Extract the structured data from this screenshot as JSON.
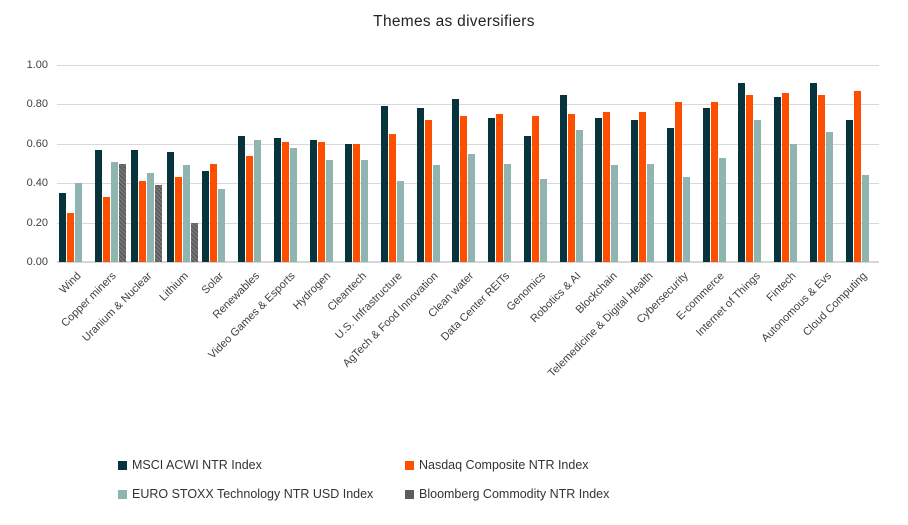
{
  "title": "Themes as diversifiers",
  "colors": {
    "msci_dark_teal": "#07333d",
    "nasdaq_orange": "#fe4f00",
    "stoxx_light_teal": "#90b4b1",
    "bcom_gray": "#5d5d5d",
    "gridline": "#d9d9d9",
    "axis_text": "#404040"
  },
  "chart_data": {
    "type": "bar",
    "title": "Themes as diversifiers",
    "categories": [
      "Wind",
      "Copper miners",
      "Uranium & Nuclear",
      "Lithium",
      "Solar",
      "Renewables",
      "Video Games & Esports",
      "Hydrogen",
      "Cleantech",
      "U.S. Infrastructure",
      "AgTech & Food Innovation",
      "Clean water",
      "Data Center REITs",
      "Genomics",
      "Robotics & AI",
      "Blockchain",
      "Telemedicine & Digital Health",
      "Cybersecurity",
      "E-commerce",
      "Internet of Things",
      "Fintech",
      "Autonomous & Evs",
      "Cloud Computing"
    ],
    "series": [
      {
        "name": "MSCI ACWI NTR Index",
        "color": "#07333d",
        "values": [
          0.35,
          0.57,
          0.57,
          0.56,
          0.46,
          0.64,
          0.63,
          0.62,
          0.6,
          0.79,
          0.78,
          0.83,
          0.73,
          0.64,
          0.85,
          0.73,
          0.72,
          0.68,
          0.78,
          0.91,
          0.84,
          0.91,
          0.72
        ]
      },
      {
        "name": "Nasdaq Composite NTR Index",
        "color": "#fe4f00",
        "values": [
          0.25,
          0.33,
          0.41,
          0.43,
          0.5,
          0.54,
          0.61,
          0.61,
          0.6,
          0.65,
          0.72,
          0.74,
          0.75,
          0.74,
          0.75,
          0.76,
          0.76,
          0.81,
          0.81,
          0.85,
          0.86,
          0.85,
          0.87
        ]
      },
      {
        "name": "EURO STOXX Technology NTR USD Index",
        "color": "#90b4b1",
        "values": [
          0.4,
          0.51,
          0.45,
          0.49,
          0.37,
          0.62,
          0.58,
          0.52,
          0.52,
          0.41,
          0.49,
          0.55,
          0.5,
          0.42,
          0.67,
          0.49,
          0.5,
          0.43,
          0.53,
          0.72,
          0.6,
          0.66,
          0.44
        ]
      },
      {
        "name": "Bloomberg Commodity NTR Index",
        "color": "#5d5d5d",
        "values": [
          null,
          0.5,
          0.39,
          0.2,
          null,
          null,
          null,
          null,
          null,
          null,
          null,
          null,
          null,
          null,
          null,
          null,
          null,
          null,
          null,
          null,
          null,
          null,
          null
        ]
      }
    ],
    "ylim": [
      0,
      1.0
    ],
    "y_ticks": [
      0,
      0.2,
      0.4,
      0.6,
      0.8,
      1.0
    ],
    "y_tick_labels": [
      "0.00",
      "0.20",
      "0.40",
      "0.60",
      "0.80",
      "1.00"
    ],
    "grid": true,
    "legend_position": "bottom"
  }
}
